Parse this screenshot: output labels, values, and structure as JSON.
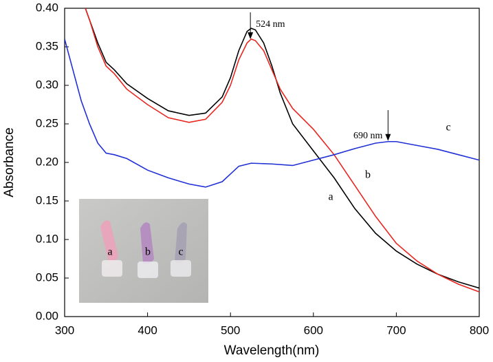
{
  "chart_data": {
    "type": "line",
    "x_label": "Wavelength(nm)",
    "y_label": "Absorbance",
    "xlim": [
      300,
      800
    ],
    "ylim": [
      0,
      0.4
    ],
    "xticks": [
      300,
      400,
      500,
      600,
      700,
      800
    ],
    "yticks": [
      {
        "value": 0,
        "label": "0.00"
      },
      {
        "value": 0.05,
        "label": "0.05"
      },
      {
        "value": 0.1,
        "label": "0.10"
      },
      {
        "value": 0.15,
        "label": "0.15"
      },
      {
        "value": 0.2,
        "label": "0.20"
      },
      {
        "value": 0.25,
        "label": "0.25"
      },
      {
        "value": 0.3,
        "label": "0.30"
      },
      {
        "value": 0.35,
        "label": "0.35"
      },
      {
        "value": 0.4,
        "label": "0.40"
      }
    ],
    "grid": false,
    "series": [
      {
        "name": "a",
        "color": "#000000",
        "x": [
          325,
          330,
          340,
          350,
          360,
          375,
          400,
          425,
          450,
          470,
          490,
          500,
          510,
          520,
          525,
          530,
          540,
          550,
          560,
          575,
          600,
          625,
          650,
          675,
          700,
          725,
          750,
          775,
          800
        ],
        "values": [
          0.4,
          0.385,
          0.355,
          0.33,
          0.32,
          0.302,
          0.283,
          0.267,
          0.261,
          0.264,
          0.285,
          0.31,
          0.345,
          0.37,
          0.374,
          0.372,
          0.355,
          0.325,
          0.29,
          0.25,
          0.215,
          0.18,
          0.14,
          0.108,
          0.085,
          0.068,
          0.055,
          0.045,
          0.037
        ]
      },
      {
        "name": "b",
        "color": "#e8251f",
        "x": [
          325,
          330,
          340,
          350,
          360,
          375,
          400,
          425,
          450,
          470,
          490,
          500,
          510,
          520,
          525,
          530,
          540,
          550,
          560,
          575,
          600,
          625,
          650,
          675,
          700,
          725,
          750,
          775,
          800
        ],
        "values": [
          0.4,
          0.385,
          0.35,
          0.325,
          0.315,
          0.295,
          0.275,
          0.258,
          0.252,
          0.256,
          0.278,
          0.3,
          0.333,
          0.355,
          0.36,
          0.358,
          0.345,
          0.32,
          0.295,
          0.27,
          0.243,
          0.21,
          0.17,
          0.13,
          0.095,
          0.072,
          0.055,
          0.042,
          0.032
        ]
      },
      {
        "name": "c",
        "color": "#1f2fd6",
        "x": [
          300,
          310,
          320,
          330,
          340,
          350,
          360,
          375,
          400,
          425,
          450,
          470,
          490,
          500,
          510,
          525,
          550,
          575,
          600,
          625,
          650,
          675,
          690,
          700,
          725,
          750,
          775,
          800
        ],
        "values": [
          0.36,
          0.32,
          0.28,
          0.25,
          0.225,
          0.212,
          0.21,
          0.205,
          0.19,
          0.18,
          0.172,
          0.168,
          0.175,
          0.185,
          0.195,
          0.199,
          0.198,
          0.196,
          0.203,
          0.21,
          0.218,
          0.225,
          0.227,
          0.227,
          0.222,
          0.217,
          0.21,
          0.203
        ]
      }
    ],
    "annotations": [
      {
        "x": 524,
        "label": "524 nm"
      },
      {
        "x": 690,
        "label": "690 nm"
      }
    ]
  }
}
